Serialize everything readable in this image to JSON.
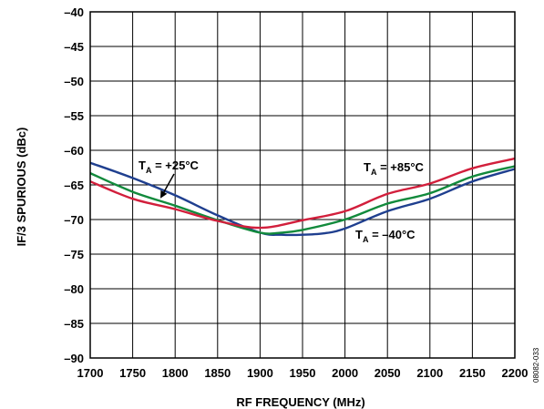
{
  "chart_data": {
    "type": "line",
    "xlabel": "RF FREQUENCY (MHz)",
    "ylabel": "IF/3 SPURIOUS (dBc)",
    "xlim": [
      1700,
      2200
    ],
    "ylim": [
      -90,
      -40
    ],
    "xticks": [
      1700,
      1750,
      1800,
      1850,
      1900,
      1950,
      2000,
      2050,
      2100,
      2150,
      2200
    ],
    "yticks": [
      -40,
      -45,
      -50,
      -55,
      -60,
      -65,
      -70,
      -75,
      -80,
      -85,
      -90
    ],
    "grid": true,
    "series": [
      {
        "color": "#1f3f8f",
        "x": [
          1700,
          1750,
          1800,
          1850,
          1900,
          1925,
          1950,
          1975,
          2000,
          2050,
          2100,
          2150,
          2200
        ],
        "y": [
          -61.8,
          -64.0,
          -66.5,
          -69.4,
          -71.9,
          -72.2,
          -72.2,
          -72.0,
          -71.3,
          -68.8,
          -67.0,
          -64.5,
          -62.7
        ]
      },
      {
        "color": "#128a3c",
        "x": [
          1700,
          1750,
          1800,
          1850,
          1900,
          1925,
          1950,
          2000,
          2050,
          2100,
          2150,
          2200
        ],
        "y": [
          -63.3,
          -66.0,
          -68.0,
          -70.1,
          -71.9,
          -71.9,
          -71.5,
          -70.0,
          -67.7,
          -66.2,
          -63.8,
          -62.3
        ]
      },
      {
        "color": "#d21f3c",
        "x": [
          1700,
          1750,
          1800,
          1850,
          1900,
          1950,
          2000,
          2050,
          2100,
          2150,
          2200
        ],
        "y": [
          -64.5,
          -67.0,
          -68.5,
          -70.2,
          -71.2,
          -70.1,
          -68.8,
          -66.3,
          -64.8,
          -62.6,
          -61.2
        ]
      }
    ],
    "annotations": [
      {
        "label": "T",
        "sub": "A",
        "rest": " = +25°C"
      },
      {
        "label": "T",
        "sub": "A",
        "rest": " = +85°C"
      },
      {
        "label": "T",
        "sub": "A",
        "rest": " = –40°C"
      }
    ],
    "figure_id": "08082-033"
  }
}
